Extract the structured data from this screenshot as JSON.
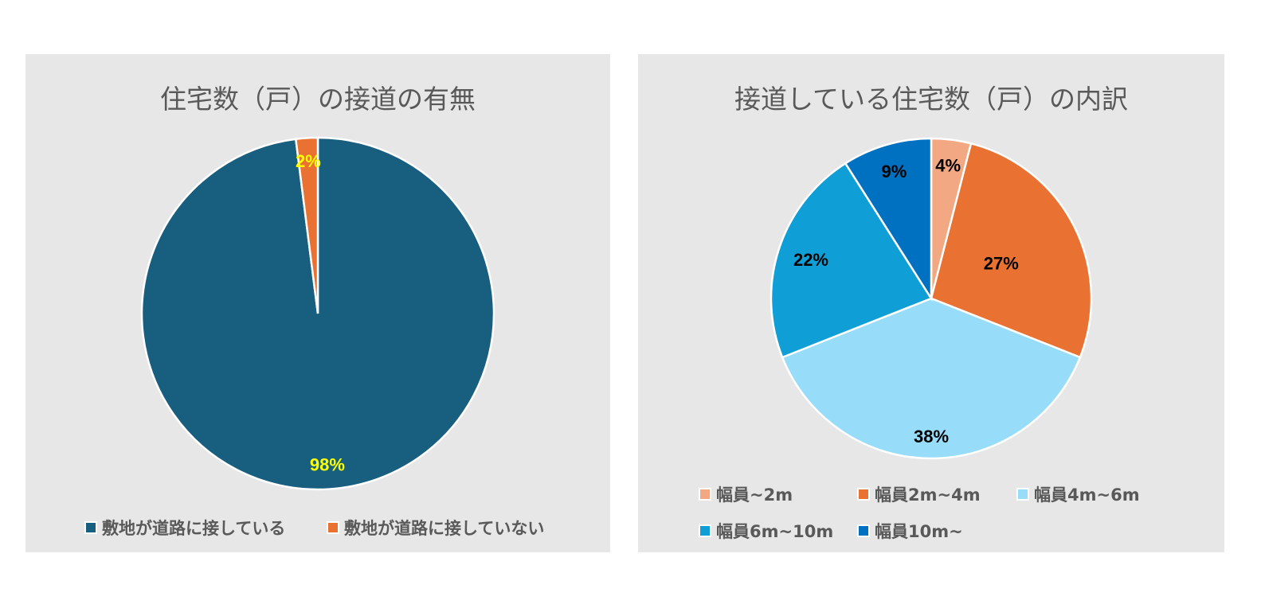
{
  "chart_data": [
    {
      "type": "pie",
      "title": "住宅数（戸）の接道の有無",
      "categories": [
        "敷地が道路に接している",
        "敷地が道路に接していない"
      ],
      "values": [
        98,
        2
      ],
      "labels": [
        "98%",
        "2%"
      ],
      "colors": [
        "#175E7F",
        "#E97132"
      ],
      "label_color": "#FFFF00",
      "legend": "bottom"
    },
    {
      "type": "pie",
      "title": "接道している住宅数（戸）の内訳",
      "categories": [
        "幅員~2m",
        "幅員2m~4m",
        "幅員4m~6m",
        "幅員6m~10m",
        "幅員10m~"
      ],
      "values": [
        4,
        27,
        38,
        22,
        9
      ],
      "labels": [
        "4%",
        "27%",
        "38%",
        "22%",
        "9%"
      ],
      "colors": [
        "#F2A983",
        "#E97132",
        "#97DCF8",
        "#0F9ED5",
        "#0070C0"
      ],
      "label_color": "#000000",
      "legend": "bottom"
    }
  ]
}
